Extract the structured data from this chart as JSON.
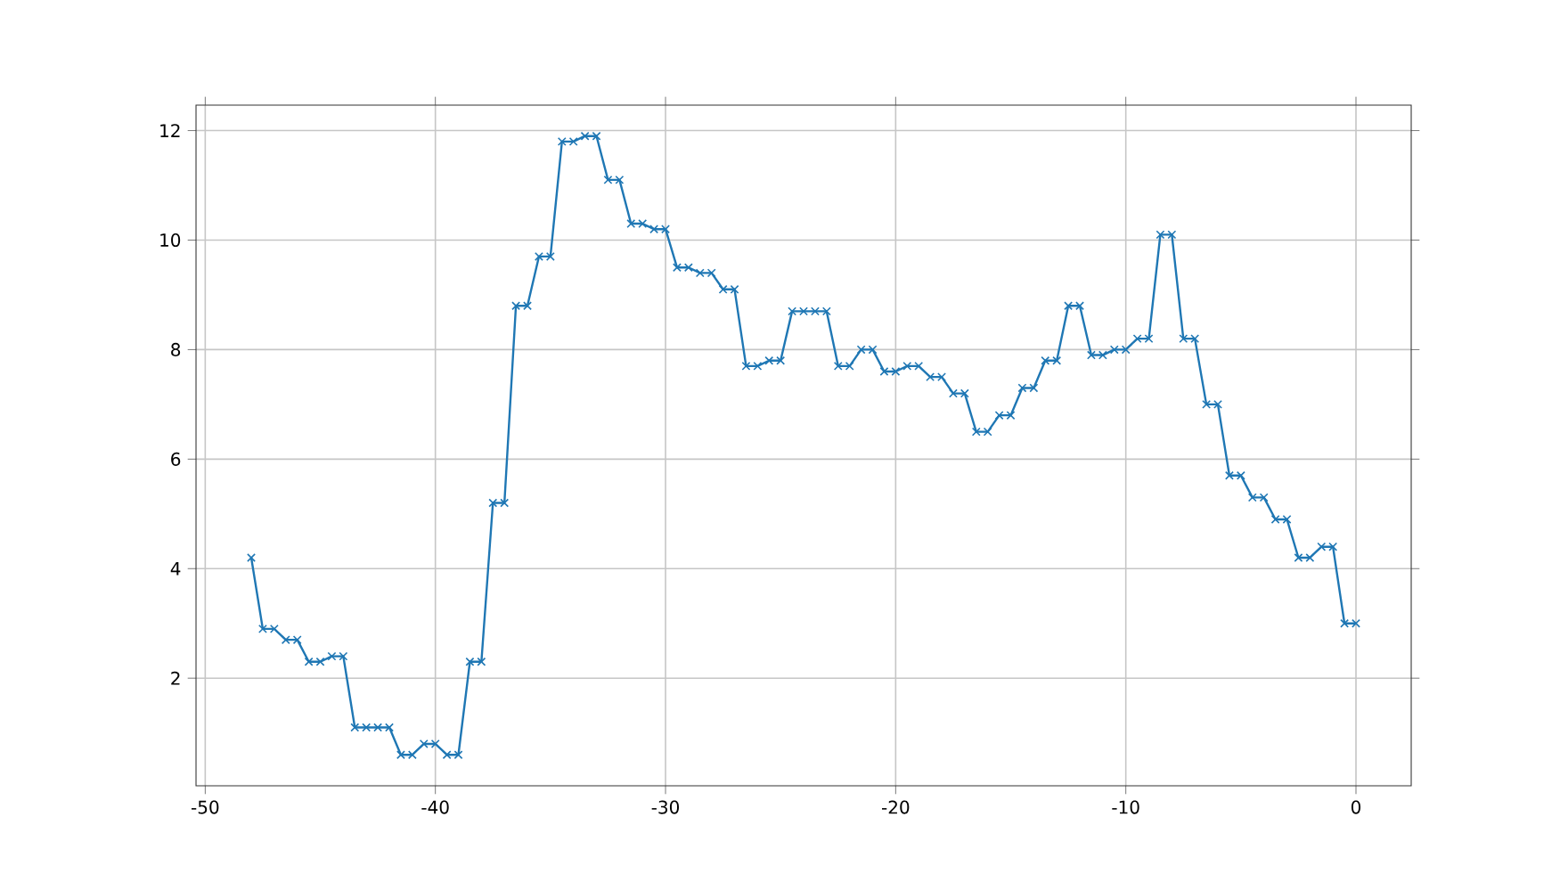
{
  "chart_data": {
    "type": "line",
    "x": [
      -48,
      -47.5,
      -47,
      -46.5,
      -46,
      -45.5,
      -45,
      -44.5,
      -44,
      -43.5,
      -43,
      -42.5,
      -42,
      -41.5,
      -41,
      -40.5,
      -40,
      -39.5,
      -39,
      -38.5,
      -38,
      -37.5,
      -37,
      -36.5,
      -36,
      -35.5,
      -35,
      -34.5,
      -34,
      -33.5,
      -33,
      -32.5,
      -32,
      -31.5,
      -31,
      -30.5,
      -30,
      -29.5,
      -29,
      -28.5,
      -28,
      -27.5,
      -27,
      -26.5,
      -26,
      -25.5,
      -25,
      -24.5,
      -24,
      -23.5,
      -23,
      -22.5,
      -22,
      -21.5,
      -21,
      -20.5,
      -20,
      -19.5,
      -19,
      -18.5,
      -18,
      -17.5,
      -17,
      -16.5,
      -16,
      -15.5,
      -15,
      -14.5,
      -14,
      -13.5,
      -13,
      -12.5,
      -12,
      -11.5,
      -11,
      -10.5,
      -10,
      -9.5,
      -9,
      -8.5,
      -8,
      -7.5,
      -7,
      -6.5,
      -6,
      -5.5,
      -5,
      -4.5,
      -4,
      -3.5,
      -3,
      -2.5,
      -2,
      -1.5,
      -1,
      -0.5,
      0
    ],
    "values": [
      4.2,
      2.9,
      2.9,
      2.7,
      2.7,
      2.3,
      2.3,
      2.4,
      2.4,
      1.1,
      1.1,
      1.1,
      1.1,
      0.6,
      0.6,
      0.8,
      0.8,
      0.6,
      0.6,
      2.3,
      2.3,
      5.2,
      5.2,
      8.8,
      8.8,
      9.7,
      9.7,
      11.8,
      11.8,
      11.9,
      11.9,
      11.1,
      11.1,
      10.3,
      10.3,
      10.2,
      10.2,
      9.5,
      9.5,
      9.4,
      9.4,
      9.1,
      9.1,
      7.7,
      7.7,
      7.8,
      7.8,
      8.7,
      8.7,
      8.7,
      8.7,
      7.7,
      7.7,
      8.0,
      8.0,
      7.6,
      7.6,
      7.7,
      7.7,
      7.5,
      7.5,
      7.2,
      7.2,
      6.5,
      6.5,
      6.8,
      6.8,
      7.3,
      7.3,
      7.8,
      7.8,
      8.8,
      8.8,
      7.9,
      7.9,
      8.0,
      8.0,
      8.2,
      8.2,
      10.1,
      10.1,
      8.2,
      8.2,
      7.0,
      7.0,
      5.7,
      5.7,
      5.3,
      5.3,
      4.9,
      4.9,
      4.2,
      4.2,
      4.4,
      4.4,
      3.0,
      3.0
    ],
    "color": "#1f77b4",
    "marker": "cross",
    "line_style": "solid",
    "xlim": [
      -50.4,
      2.4
    ],
    "ylim": [
      0.035,
      12.465
    ],
    "xticks": [
      -50,
      -40,
      -30,
      -20,
      -10,
      0
    ],
    "yticks": [
      2,
      4,
      6,
      8,
      10,
      12
    ],
    "grid": true
  }
}
